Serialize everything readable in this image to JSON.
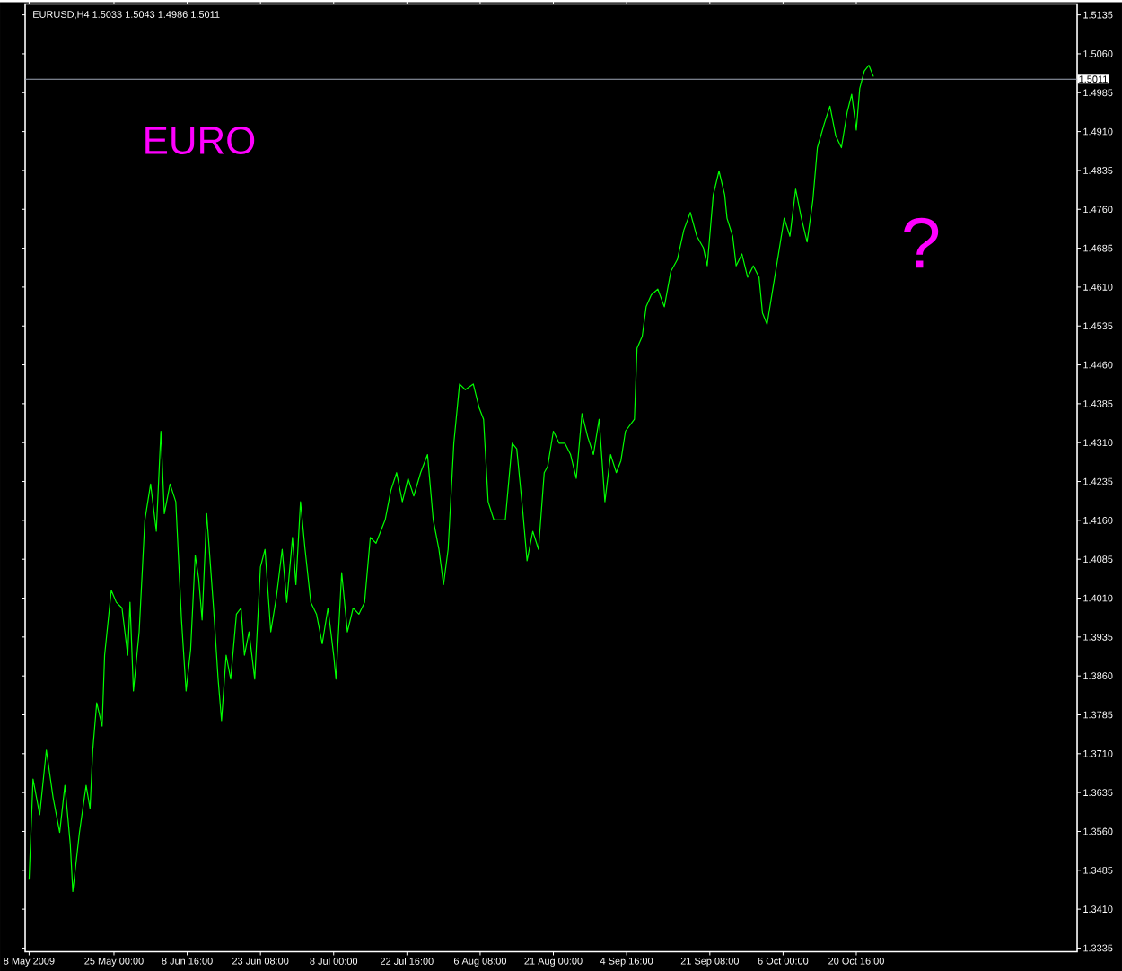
{
  "chart_data": {
    "type": "line",
    "title": "EURUSD,H4  1.5033 1.5043 1.4986 1.5011",
    "annotations": [
      "EURO",
      "?"
    ],
    "x": [
      "2009-05-08T00:00",
      "2009-05-08T19:00",
      "2009-05-10T03:00",
      "2009-05-11T11:00",
      "2009-05-12T19:00",
      "2009-05-14T03:00",
      "2009-05-15T04:00",
      "2009-05-16T06:00",
      "2009-05-16T18:00",
      "2009-05-18T02:00",
      "2009-05-19T10:00",
      "2009-05-20T05:00",
      "2009-05-20T18:00",
      "2009-05-21T13:00",
      "2009-05-22T15:00",
      "2009-05-23T03:00",
      "2009-05-24T11:00",
      "2009-05-25T11:00",
      "2009-05-26T14:30",
      "2009-05-27T18:00",
      "2009-05-28T05:00",
      "2009-05-28T21:30",
      "2009-05-30T01:00",
      "2009-05-31T04:30",
      "2009-06-01T08:00",
      "2009-06-02T11:30",
      "2009-06-03T09:30",
      "2009-06-04T02:00",
      "2009-06-05T05:30",
      "2009-06-06T09:00",
      "2009-06-07T12:30",
      "2009-06-08T10:30",
      "2009-06-09T08:30",
      "2009-06-10T06:30",
      "2009-06-10T23:00",
      "2009-06-11T15:30",
      "2009-06-12T13:30",
      "2009-06-13T22:30",
      "2009-06-14T20:30",
      "2009-06-15T13:00",
      "2009-06-16T11:00",
      "2009-06-17T09:00",
      "2009-06-18T12:30",
      "2009-06-19T10:30",
      "2009-06-20T03:00",
      "2009-06-21T01:00",
      "2009-06-22T04:30",
      "2009-06-23T08:00",
      "2009-06-24T06:00",
      "2009-06-25T09:30",
      "2009-06-26T13:00",
      "2009-06-27T16:30",
      "2009-06-28T14:30",
      "2009-06-29T18:00",
      "2009-06-30T10:30",
      "2009-07-01T08:30",
      "2009-07-02T06:30",
      "2009-07-03T10:00",
      "2009-07-04T13:30",
      "2009-07-05T17:00",
      "2009-07-06T20:30",
      "2009-07-08T00:00",
      "2009-07-08T11:00",
      "2009-07-09T14:30",
      "2009-07-10T18:00",
      "2009-07-11T21:30",
      "2009-07-13T01:00",
      "2009-07-14T04:30",
      "2009-07-15T08:00",
      "2009-07-16T11:30",
      "2009-07-18T07:30",
      "2009-07-19T11:00",
      "2009-07-20T14:30",
      "2009-07-21T18:00",
      "2009-07-22T21:30",
      "2009-07-24T01:00",
      "2009-07-25T10:00",
      "2009-07-26T19:00",
      "2009-07-27T22:30",
      "2009-07-29T02:00",
      "2009-07-30T00:00",
      "2009-07-30T22:00",
      "2009-08-01T01:30",
      "2009-08-02T05:00",
      "2009-08-03T08:30",
      "2009-08-04T23:00",
      "2009-08-06T02:30",
      "2009-08-07T00:30",
      "2009-08-07T22:30",
      "2009-08-09T02:00",
      "2009-08-10T05:30",
      "2009-08-11T09:00",
      "2009-08-12T18:00",
      "2009-08-13T16:00",
      "2009-08-14T19:30",
      "2009-08-15T17:30",
      "2009-08-16T21:00",
      "2009-08-18T00:30",
      "2009-08-19T04:00",
      "2009-08-19T20:30",
      "2009-08-21T00:00",
      "2009-08-22T03:30",
      "2009-08-23T07:00",
      "2009-08-24T10:30",
      "2009-08-25T14:00",
      "2009-08-26T17:30",
      "2009-08-27T21:00",
      "2009-08-29T00:30",
      "2009-08-30T04:00",
      "2009-08-31T07:30",
      "2009-09-01T11:00",
      "2009-09-02T14:30",
      "2009-09-03T12:30",
      "2009-09-04T10:30",
      "2009-09-06T05:30",
      "2009-09-06T18:00",
      "2009-09-07T19:00",
      "2009-09-08T13:45",
      "2009-09-09T14:45",
      "2009-09-10T22:00",
      "2009-09-12T05:15",
      "2009-09-13T12:30",
      "2009-09-14T19:45",
      "2009-09-16T03:00",
      "2009-09-17T10:15",
      "2009-09-18T17:30",
      "2009-09-20T00:45",
      "2009-09-20T19:30",
      "2009-09-22T00:30",
      "2009-09-23T04:00",
      "2009-09-24T07:30",
      "2009-09-24T18:30",
      "2009-09-25T22:00",
      "2009-09-26T14:30",
      "2009-09-27T18:00",
      "2009-09-28T21:30",
      "2009-09-30T01:00",
      "2009-10-01T04:30",
      "2009-10-01T21:00",
      "2009-10-02T19:00",
      "2009-10-03T22:30",
      "2009-10-05T02:00",
      "2009-10-06T05:30",
      "2009-10-07T09:00",
      "2009-10-08T12:30",
      "2009-10-09T16:00",
      "2009-10-10T19:30",
      "2009-10-11T23:00",
      "2009-10-12T21:00",
      "2009-10-14T06:00",
      "2009-10-15T09:30",
      "2009-10-16T13:00",
      "2009-10-17T16:30",
      "2009-10-18T20:00",
      "2009-10-19T18:00",
      "2009-10-20T16:00",
      "2009-10-21T08:30",
      "2009-10-22T06:30",
      "2009-10-23T04:30",
      "2009-10-24T02:30"
    ],
    "series": [
      {
        "color": "#00ff00",
        "values": [
          1.3467,
          1.3661,
          1.3592,
          1.3717,
          1.3626,
          1.3558,
          1.3649,
          1.3535,
          1.3444,
          1.3558,
          1.3649,
          1.3604,
          1.3717,
          1.3808,
          1.3763,
          1.39,
          1.4025,
          1.4002,
          1.3991,
          1.39,
          1.4002,
          1.3831,
          1.3945,
          1.4161,
          1.423,
          1.4139,
          1.4332,
          1.4173,
          1.423,
          1.4196,
          1.3968,
          1.3831,
          1.3911,
          1.4093,
          1.4048,
          1.3968,
          1.4173,
          1.3991,
          1.3854,
          1.3774,
          1.39,
          1.3854,
          1.3979,
          1.3991,
          1.39,
          1.3945,
          1.3854,
          1.407,
          1.4104,
          1.3945,
          1.4013,
          1.4104,
          1.4002,
          1.4127,
          1.4036,
          1.4196,
          1.4104,
          1.4002,
          1.3979,
          1.3922,
          1.3991,
          1.39,
          1.3854,
          1.4059,
          1.3945,
          1.3991,
          1.3979,
          1.4002,
          1.4127,
          1.4116,
          1.4161,
          1.4218,
          1.4252,
          1.4196,
          1.4241,
          1.4207,
          1.4252,
          1.4287,
          1.4161,
          1.4104,
          1.4036,
          1.4104,
          1.4309,
          1.4423,
          1.4412,
          1.4423,
          1.4378,
          1.4355,
          1.4196,
          1.4161,
          1.4161,
          1.4161,
          1.4309,
          1.4298,
          1.4184,
          1.4082,
          1.4139,
          1.4104,
          1.4252,
          1.4264,
          1.4332,
          1.4309,
          1.4309,
          1.4287,
          1.4241,
          1.4366,
          1.4321,
          1.4287,
          1.4355,
          1.4196,
          1.4287,
          1.4252,
          1.4275,
          1.4332,
          1.4355,
          1.4492,
          1.4515,
          1.4572,
          1.4595,
          1.4606,
          1.4572,
          1.464,
          1.4663,
          1.472,
          1.4754,
          1.4708,
          1.4686,
          1.4651,
          1.4788,
          1.4834,
          1.4788,
          1.4743,
          1.4708,
          1.4651,
          1.4674,
          1.4629,
          1.4651,
          1.4629,
          1.456,
          1.4538,
          1.4606,
          1.4674,
          1.4743,
          1.4708,
          1.4799,
          1.4743,
          1.4697,
          1.4777,
          1.4879,
          1.4925,
          1.4959,
          1.4902,
          1.4879,
          1.4947,
          1.4982,
          1.4913,
          1.4993,
          1.5027,
          1.5038,
          1.5016
        ]
      }
    ],
    "xlim": [
      "2009-05-07T05:00",
      "2009-12-03T21:30"
    ],
    "ylim": [
      1.3328,
      1.5156
    ],
    "xticks": [
      {
        "value": "2009-05-08",
        "label": "8 May 2009"
      },
      {
        "value": "2009-05-25T00:00",
        "label": "25 May 00:00"
      },
      {
        "value": "2009-06-08T16:00",
        "label": "8 Jun 16:00"
      },
      {
        "value": "2009-06-23T08:00",
        "label": "23 Jun 08:00"
      },
      {
        "value": "2009-07-08T00:00",
        "label": "8 Jul 00:00"
      },
      {
        "value": "2009-07-22T16:00",
        "label": "22 Jul 16:00"
      },
      {
        "value": "2009-08-06T08:00",
        "label": "6 Aug 08:00"
      },
      {
        "value": "2009-08-21T00:00",
        "label": "21 Aug 00:00"
      },
      {
        "value": "2009-09-04T16:00",
        "label": "4 Sep 16:00"
      },
      {
        "value": "2009-09-21T08:00",
        "label": "21 Sep 08:00"
      },
      {
        "value": "2009-10-06T00:00",
        "label": "6 Oct 00:00"
      },
      {
        "value": "2009-10-20T16:00",
        "label": "20 Oct 16:00"
      }
    ],
    "yticks": [
      1.5135,
      {
        "value": 1.506,
        "label": "1.5060"
      },
      1.4985,
      {
        "value": 1.491,
        "label": "1.4910"
      },
      1.4835,
      {
        "value": 1.476,
        "label": "1.4760"
      },
      1.4685,
      {
        "value": 1.461,
        "label": "1.4610"
      },
      1.4535,
      {
        "value": 1.446,
        "label": "1.4460"
      },
      1.4385,
      {
        "value": 1.431,
        "label": "1.4310"
      },
      1.4235,
      {
        "value": 1.416,
        "label": "1.4160"
      },
      1.4085,
      {
        "value": 1.401,
        "label": "1.4010"
      },
      1.3935,
      {
        "value": 1.386,
        "label": "1.3860"
      },
      1.3785,
      {
        "value": 1.371,
        "label": "1.3710"
      },
      1.3635,
      {
        "value": 1.356,
        "label": "1.3560"
      },
      1.3485,
      {
        "value": 1.341,
        "label": "1.3410"
      },
      1.3335
    ],
    "ref_lines": [
      {
        "axis": "y",
        "value": 1.5011,
        "label": "1.5011",
        "color": "#a0a8b8"
      }
    ],
    "grid": false,
    "marker": "none",
    "line_style": "solid"
  }
}
